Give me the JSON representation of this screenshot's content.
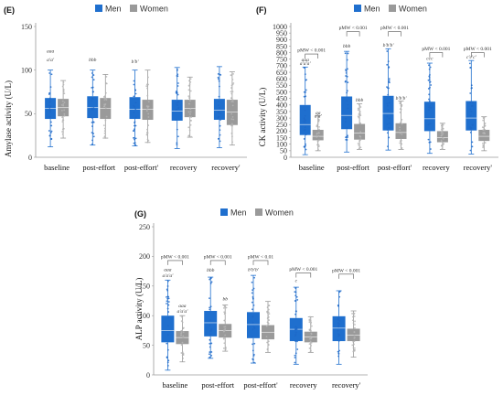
{
  "colors": {
    "men": "#1f6fce",
    "women": "#9a9a9a",
    "men_dots": "#1e68c8",
    "women_dots": "#b5b5b5",
    "axis": "#9a9a9a",
    "grid": "#d9d9d9"
  },
  "chart_data": [
    {
      "panel": "(E)",
      "type": "box",
      "ylabel": "Amylase activity (U/L)",
      "ylim": [
        0,
        150
      ],
      "yticks": [
        0,
        50,
        100,
        150
      ],
      "grid": false,
      "legend": {
        "placement": "top-center",
        "entries": [
          "Men",
          "Women"
        ]
      },
      "categories": [
        "baseline",
        "post-effort",
        "post-effort'",
        "recovery",
        "recovery'"
      ],
      "series": [
        {
          "name": "Men",
          "boxes": [
            {
              "min": 12,
              "q1": 44,
              "median": 56,
              "q3": 68,
              "max": 100
            },
            {
              "min": 14,
              "q1": 45,
              "median": 57,
              "q3": 70,
              "max": 100
            },
            {
              "min": 13,
              "q1": 44,
              "median": 55,
              "q3": 69,
              "max": 100
            },
            {
              "min": 10,
              "q1": 42,
              "median": 53,
              "q3": 66,
              "max": 103
            },
            {
              "min": 11,
              "q1": 43,
              "median": 54,
              "q3": 67,
              "max": 104
            }
          ]
        },
        {
          "name": "Women",
          "boxes": [
            {
              "min": 22,
              "q1": 47,
              "median": 57,
              "q3": 67,
              "max": 88
            },
            {
              "min": 22,
              "q1": 44,
              "median": 56,
              "q3": 68,
              "max": 95
            },
            {
              "min": 17,
              "q1": 43,
              "median": 55,
              "q3": 66,
              "max": 100
            },
            {
              "min": 23,
              "q1": 46,
              "median": 56,
              "q3": 66,
              "max": 92
            },
            {
              "min": 14,
              "q1": 37,
              "median": 52,
              "q3": 66,
              "max": 98
            }
          ]
        }
      ],
      "annotations": [
        {
          "text": "aaa",
          "category": 0,
          "series": 0,
          "y": 120
        },
        {
          "text": "a'a'",
          "category": 0,
          "series": 0,
          "y": 110
        },
        {
          "text": "bbb",
          "category": 1,
          "series": 0,
          "y": 110
        },
        {
          "text": "b'b'",
          "category": 2,
          "series": 0,
          "y": 108
        }
      ],
      "brackets": []
    },
    {
      "panel": "(F)",
      "type": "box",
      "ylabel": "CK activity (U/L)",
      "ylim": [
        0,
        1000
      ],
      "yticks": [
        0,
        50,
        100,
        150,
        200,
        250,
        300,
        350,
        400,
        450,
        500,
        550,
        600,
        650,
        700,
        750,
        800,
        850,
        900,
        950,
        1000
      ],
      "grid": false,
      "legend": {
        "placement": "top-center",
        "entries": [
          "Men",
          "Women"
        ]
      },
      "categories": [
        "baseline",
        "post-effort",
        "post-effort'",
        "recovery",
        "recovery'"
      ],
      "series": [
        {
          "name": "Men",
          "boxes": [
            {
              "min": 20,
              "q1": 170,
              "median": 250,
              "q3": 400,
              "max": 690
            },
            {
              "min": 40,
              "q1": 215,
              "median": 320,
              "q3": 465,
              "max": 810
            },
            {
              "min": 55,
              "q1": 205,
              "median": 335,
              "q3": 470,
              "max": 830
            },
            {
              "min": 30,
              "q1": 200,
              "median": 295,
              "q3": 425,
              "max": 720
            },
            {
              "min": 25,
              "q1": 205,
              "median": 300,
              "q3": 430,
              "max": 740
            }
          ]
        },
        {
          "name": "Women",
          "boxes": [
            {
              "min": 50,
              "q1": 130,
              "median": 160,
              "q3": 210,
              "max": 320
            },
            {
              "min": 60,
              "q1": 135,
              "median": 185,
              "q3": 255,
              "max": 410
            },
            {
              "min": 60,
              "q1": 140,
              "median": 190,
              "q3": 260,
              "max": 430
            },
            {
              "min": 60,
              "q1": 115,
              "median": 150,
              "q3": 200,
              "max": 260
            },
            {
              "min": 50,
              "q1": 125,
              "median": 160,
              "q3": 210,
              "max": 310
            }
          ]
        }
      ],
      "annotations": [
        {
          "text": "aaa",
          "category": 0,
          "series": 0,
          "y": 735
        },
        {
          "text": "a'a'a'",
          "category": 0,
          "series": 0,
          "y": 705
        },
        {
          "text": "aa",
          "category": 0,
          "series": 1,
          "y": 330
        },
        {
          "text": "a'a'",
          "category": 0,
          "series": 1,
          "y": 305
        },
        {
          "text": "bbb",
          "category": 1,
          "series": 0,
          "y": 840
        },
        {
          "text": "bbb",
          "category": 1,
          "series": 1,
          "y": 425
        },
        {
          "text": "b'b'b'",
          "category": 2,
          "series": 0,
          "y": 845
        },
        {
          "text": "b'b'b'",
          "category": 2,
          "series": 1,
          "y": 440
        },
        {
          "text": "ccc",
          "category": 3,
          "series": 0,
          "y": 745
        },
        {
          "text": "c'c'c'",
          "category": 4,
          "series": 0,
          "y": 755
        }
      ],
      "brackets": [
        {
          "category": 0,
          "text": "pMW < 0.001",
          "y": 790
        },
        {
          "category": 1,
          "text": "pMW < 0.001",
          "y": 960
        },
        {
          "category": 2,
          "text": "pMW < 0.001",
          "y": 960
        },
        {
          "category": 3,
          "text": "pMW < 0.001",
          "y": 800
        },
        {
          "category": 4,
          "text": "pMW < 0.001",
          "y": 800
        }
      ]
    },
    {
      "panel": "(G)",
      "type": "box",
      "ylabel": "ALP activity (U/L)",
      "ylim": [
        0,
        250
      ],
      "yticks": [
        0,
        50,
        100,
        150,
        200,
        250
      ],
      "grid": false,
      "legend": {
        "placement": "top-center",
        "entries": [
          "Men",
          "Women"
        ]
      },
      "categories": [
        "baseline",
        "post-effort",
        "post-effort'",
        "recovery",
        "recovery'"
      ],
      "series": [
        {
          "name": "Men",
          "boxes": [
            {
              "min": 8,
              "q1": 55,
              "median": 75,
              "q3": 100,
              "max": 160
            },
            {
              "min": 28,
              "q1": 65,
              "median": 88,
              "q3": 108,
              "max": 165
            },
            {
              "min": 20,
              "q1": 62,
              "median": 85,
              "q3": 106,
              "max": 168
            },
            {
              "min": 18,
              "q1": 57,
              "median": 77,
              "q3": 96,
              "max": 148
            },
            {
              "min": 18,
              "q1": 57,
              "median": 79,
              "q3": 99,
              "max": 142
            }
          ]
        },
        {
          "name": "Women",
          "boxes": [
            {
              "min": 22,
              "q1": 52,
              "median": 63,
              "q3": 74,
              "max": 100
            },
            {
              "min": 40,
              "q1": 63,
              "median": 75,
              "q3": 86,
              "max": 118
            },
            {
              "min": 38,
              "q1": 60,
              "median": 72,
              "q3": 84,
              "max": 124
            },
            {
              "min": 38,
              "q1": 55,
              "median": 64,
              "q3": 73,
              "max": 98
            },
            {
              "min": 30,
              "q1": 57,
              "median": 67,
              "q3": 78,
              "max": 108
            }
          ]
        }
      ],
      "annotations": [
        {
          "text": "aaa",
          "category": 0,
          "series": 0,
          "y": 175
        },
        {
          "text": "a'a'a'",
          "category": 0,
          "series": 0,
          "y": 165
        },
        {
          "text": "aaa",
          "category": 0,
          "series": 1,
          "y": 114
        },
        {
          "text": "a'a'a'",
          "category": 0,
          "series": 1,
          "y": 105
        },
        {
          "text": "bbb",
          "category": 1,
          "series": 0,
          "y": 174
        },
        {
          "text": "bb",
          "category": 1,
          "series": 1,
          "y": 126
        },
        {
          "text": "b'b'b'",
          "category": 2,
          "series": 0,
          "y": 175
        },
        {
          "text": "c",
          "category": 3,
          "series": 0,
          "y": 157
        }
      ],
      "brackets": [
        {
          "category": 0,
          "text": "pMW < 0.001",
          "y": 193
        },
        {
          "category": 1,
          "text": "pMW < 0.001",
          "y": 193
        },
        {
          "category": 2,
          "text": "pMW < 0.01",
          "y": 193
        },
        {
          "category": 3,
          "text": "pMW < 0.001",
          "y": 172
        },
        {
          "category": 4,
          "text": "pMW < 0.001",
          "y": 170
        }
      ]
    }
  ]
}
